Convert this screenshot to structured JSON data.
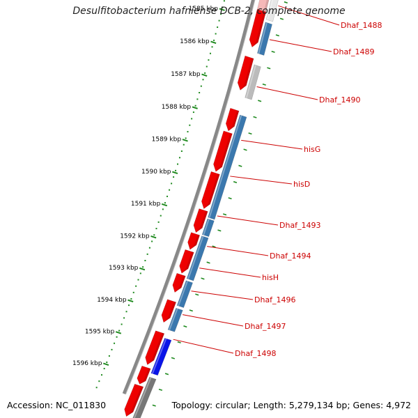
{
  "title": "Desulfitobacterium hafniense DCB-2, complete genome",
  "footer": {
    "accession": "Accession: NC_011830",
    "topology": "Topology: circular; Length: 5,279,134 bp; Genes: 4,972"
  },
  "colors": {
    "forward_gene": "#ee0000",
    "reverse_gene": "#3b78ae",
    "pseudo_gene": "#bbbbbb",
    "other_gene": "#0000ee",
    "backbone": "#888888",
    "tick": "#1f8a1f",
    "label": "#cc0000"
  },
  "kbp_scale": [
    {
      "kbp": 1585,
      "label": "1585 kbp"
    },
    {
      "kbp": 1586,
      "label": "1586 kbp"
    },
    {
      "kbp": 1587,
      "label": "1587 kbp"
    },
    {
      "kbp": 1588,
      "label": "1588 kbp"
    },
    {
      "kbp": 1589,
      "label": "1589 kbp"
    },
    {
      "kbp": 1590,
      "label": "1590 kbp"
    },
    {
      "kbp": 1591,
      "label": "1591 kbp"
    },
    {
      "kbp": 1592,
      "label": "1592 kbp"
    },
    {
      "kbp": 1593,
      "label": "1593 kbp"
    },
    {
      "kbp": 1594,
      "label": "1594 kbp"
    },
    {
      "kbp": 1595,
      "label": "1595 kbp"
    },
    {
      "kbp": 1596,
      "label": "1596 kbp"
    }
  ],
  "gene_labels": [
    "Dhaf_1488",
    "Dhaf_1489",
    "Dhaf_1490",
    "hisG",
    "hisD",
    "Dhaf_1493",
    "Dhaf_1494",
    "hisH",
    "Dhaf_1496",
    "Dhaf_1497",
    "Dhaf_1498"
  ]
}
